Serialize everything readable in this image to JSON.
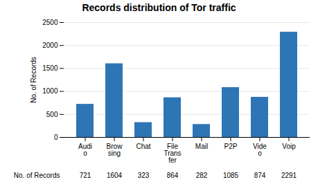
{
  "chart_data": {
    "type": "bar",
    "title": "Records distribution of Tor traffic",
    "categories": [
      "Audi\no",
      "Brow\nsing",
      "Chat",
      "File\nTrans\nfer",
      "Mail",
      "P2P",
      "Vide\no",
      "Voip"
    ],
    "series": [
      {
        "name": "No. of Records",
        "color": "#2E75B6",
        "values": [
          721,
          1604,
          323,
          864,
          282,
          1085,
          874,
          2291
        ]
      }
    ],
    "ylabel": "No. of Records",
    "ylim": [
      0,
      2500
    ],
    "yticks": [
      0,
      500,
      1000,
      1500,
      2000,
      2500
    ],
    "grid": true,
    "data_labels": true
  }
}
